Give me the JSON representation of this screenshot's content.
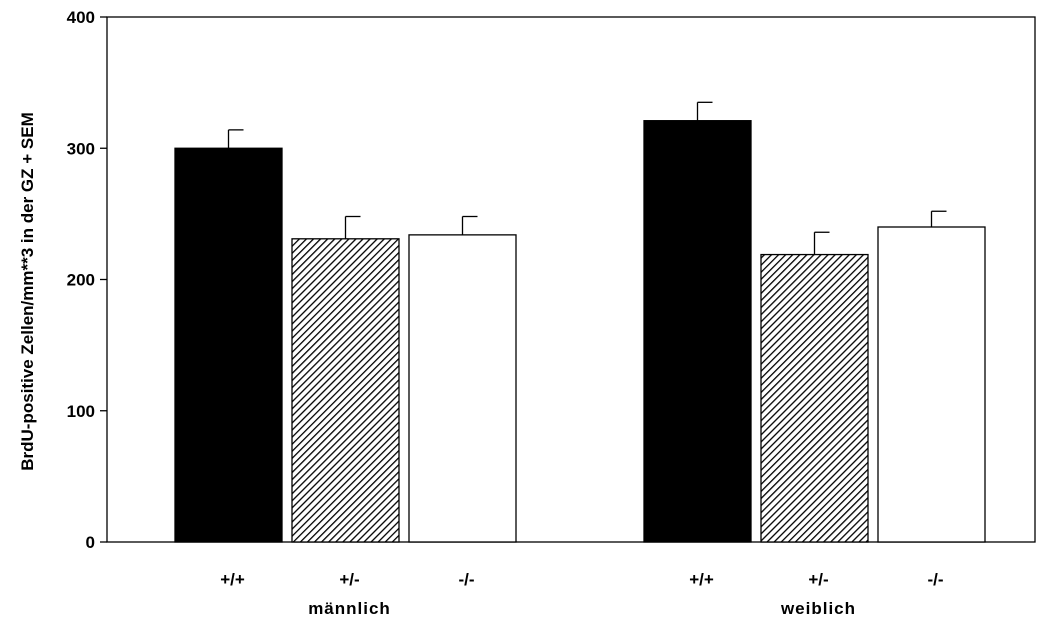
{
  "chart_data": {
    "type": "bar",
    "ylabel": "BrdU-positive Zellen/mm**3 in der GZ + SEM",
    "ylim": [
      0,
      400
    ],
    "yticks": [
      "0",
      "100",
      "200",
      "300",
      "400"
    ],
    "groups": [
      {
        "name": "männlich",
        "bars": [
          {
            "label": "+/+",
            "value": 300,
            "sem": 14,
            "fill": "solid-black"
          },
          {
            "label": "+/-",
            "value": 231,
            "sem": 17,
            "fill": "diagonal-hatch"
          },
          {
            "label": "-/-",
            "value": 234,
            "sem": 14,
            "fill": "white"
          }
        ]
      },
      {
        "name": "weiblich",
        "bars": [
          {
            "label": "+/+",
            "value": 321,
            "sem": 14,
            "fill": "solid-black"
          },
          {
            "label": "+/-",
            "value": 219,
            "sem": 17,
            "fill": "diagonal-hatch"
          },
          {
            "label": "-/-",
            "value": 240,
            "sem": 12,
            "fill": "white"
          }
        ]
      }
    ],
    "grid": false,
    "colors": {
      "bar_black": "#000000",
      "bar_white": "#ffffff",
      "stroke": "#000000"
    }
  }
}
